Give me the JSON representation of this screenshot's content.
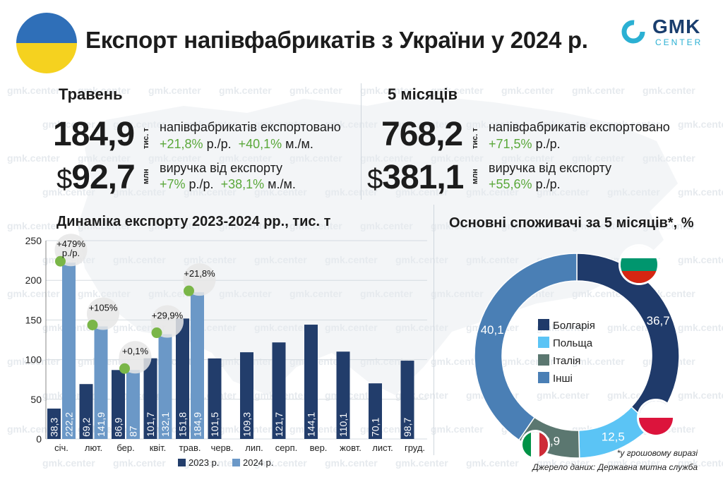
{
  "header": {
    "title": "Експорт напівфабрикатів з України у 2024 р.",
    "logo_main": "GMK",
    "logo_sub": "CENTER",
    "watermark": "gmk.center"
  },
  "may": {
    "heading": "Травень",
    "volume": "184,9",
    "volume_unit": "тис. т",
    "volume_label": "напівфабрикатів експортовано",
    "volume_yoy": "+21,8%",
    "volume_yoy_suffix": " р./р.",
    "volume_mom": "+40,1%",
    "volume_mom_suffix": " м./м.",
    "currency": "$",
    "revenue": "92,7",
    "revenue_unit": "млн",
    "revenue_label": "виручка від експорту",
    "revenue_yoy": "+7%",
    "revenue_yoy_suffix": " р./р.",
    "revenue_mom": "+38,1%",
    "revenue_mom_suffix": " м./м."
  },
  "five_months": {
    "heading": "5 місяців",
    "volume": "768,2",
    "volume_unit": "тис. т",
    "volume_label": "напівфабрикатів експортовано",
    "volume_yoy": "+71,5%",
    "volume_yoy_suffix": " р./р.",
    "currency": "$",
    "revenue": "381,1",
    "revenue_unit": "млн",
    "revenue_label": "виручка від експорту",
    "revenue_yoy": "+55,6%",
    "revenue_yoy_suffix": " р./р."
  },
  "colors": {
    "series_2023": "#223d6b",
    "series_2024": "#6b98c7",
    "green": "#7ab648",
    "bulgaria": "#1f3a6a",
    "poland": "#5bc4f5",
    "italy": "#5b7770",
    "others": "#4a7fb5"
  },
  "chart_data": [
    {
      "type": "bar",
      "title": "Динаміка експорту 2023-2024 рр., тис. т",
      "categories": [
        "січ.",
        "лют.",
        "бер.",
        "квіт.",
        "трав.",
        "черв.",
        "лип.",
        "серп.",
        "вер.",
        "жовт.",
        "лист.",
        "груд."
      ],
      "ylim": [
        0,
        250
      ],
      "yticks": [
        0,
        50,
        100,
        150,
        200,
        250
      ],
      "series": [
        {
          "name": "2023 р.",
          "values": [
            38.3,
            69.2,
            86.9,
            101.7,
            151.8,
            101.5,
            109.3,
            121.7,
            144.1,
            110.1,
            70.1,
            98.7
          ],
          "labels": [
            "38,3",
            "69,2",
            "86,9",
            "101,7",
            "151,8",
            "101,5",
            "109,3",
            "121,7",
            "144,1",
            "110,1",
            "70,1",
            "98,7"
          ]
        },
        {
          "name": "2024 р.",
          "values": [
            222.2,
            141.9,
            87,
            132.1,
            184.9,
            null,
            null,
            null,
            null,
            null,
            null,
            null
          ],
          "labels": [
            "222,2",
            "141,9",
            "87",
            "132,1",
            "184,9",
            "",
            "",
            "",
            "",
            "",
            "",
            ""
          ]
        }
      ],
      "annotations": [
        "+479%\nр./р.",
        "+105%",
        "+0,1%",
        "+29,9%",
        "+21,8%"
      ],
      "legend": "bottom"
    },
    {
      "type": "pie",
      "title": "Основні споживачі за 5 місяців*, %",
      "categories": [
        "Болгарія",
        "Польща",
        "Італія",
        "Інші"
      ],
      "values": [
        36.7,
        12.5,
        9.9,
        40.1
      ],
      "labels": [
        "36,7",
        "12,5",
        "9,9",
        "40,1"
      ]
    }
  ],
  "footnote": "*у грошовому виразі",
  "source": "Джерело даних: Державна митна служба"
}
